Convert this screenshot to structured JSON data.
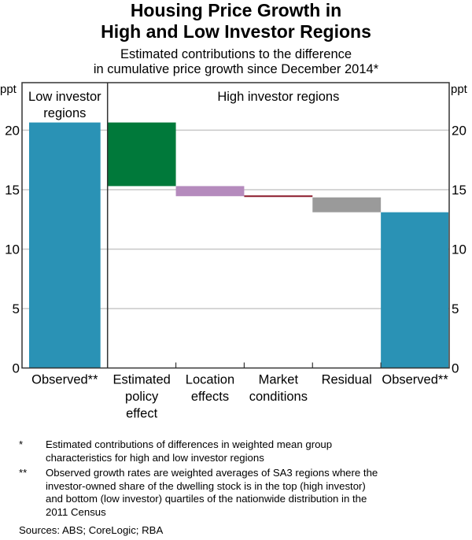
{
  "chart_data": {
    "type": "bar",
    "subtype": "waterfall",
    "title": "Housing Price Growth in High and Low Investor Regions",
    "title_lines": [
      "Housing Price Growth in",
      "High and Low Investor Regions"
    ],
    "subtitle_lines": [
      "Estimated contributions to the difference",
      "in cumulative price growth since December 2014*"
    ],
    "ylabel_left": "ppt",
    "ylabel_right": "ppt",
    "ylim": [
      0,
      24
    ],
    "yticks": [
      0,
      5,
      10,
      15,
      20
    ],
    "grid": true,
    "panels": [
      {
        "label": "Low investor regions",
        "label_lines": [
          "Low investor",
          "regions"
        ]
      },
      {
        "label": "High investor regions",
        "label_lines": [
          "High investor regions"
        ]
      }
    ],
    "categories": [
      {
        "label": "Observed**",
        "label_lines": [
          "Observed**"
        ],
        "panel": 0,
        "kind": "total",
        "start": 0,
        "end": 20.65,
        "color": "#2a92b5"
      },
      {
        "label": "Estimated policy effect",
        "label_lines": [
          "Estimated",
          "policy",
          "effect"
        ],
        "panel": 1,
        "kind": "change",
        "start": 20.65,
        "end": 15.3,
        "value": -5.35,
        "color": "#00793a"
      },
      {
        "label": "Location effects",
        "label_lines": [
          "Location",
          "effects"
        ],
        "panel": 1,
        "kind": "change",
        "start": 15.3,
        "end": 14.45,
        "value": -0.85,
        "color": "#b58bbd"
      },
      {
        "label": "Market conditions",
        "label_lines": [
          "Market",
          "conditions"
        ],
        "panel": 1,
        "kind": "change",
        "start": 14.45,
        "end": 14.35,
        "value": -0.1,
        "color": "#8b1a2b"
      },
      {
        "label": "Residual",
        "label_lines": [
          "Residual"
        ],
        "panel": 1,
        "kind": "change",
        "start": 14.35,
        "end": 13.1,
        "value": -1.25,
        "color": "#9a9a9a"
      },
      {
        "label": "Observed**",
        "label_lines": [
          "Observed**"
        ],
        "panel": 1,
        "kind": "total",
        "start": 0,
        "end": 13.1,
        "color": "#2a92b5"
      }
    ]
  },
  "notes": [
    {
      "mark": "*",
      "lines": [
        "Estimated contributions of differences in weighted mean group",
        "characteristics for high and low investor regions"
      ]
    },
    {
      "mark": "**",
      "lines": [
        "Observed growth rates are weighted averages of SA3 regions where the",
        "investor-owned share of the dwelling stock is in the top (high investor)",
        "and bottom (low investor) quartiles of the nationwide distribution in the",
        "2011 Census"
      ]
    }
  ],
  "sources": "Sources: ABS; CoreLogic; RBA"
}
